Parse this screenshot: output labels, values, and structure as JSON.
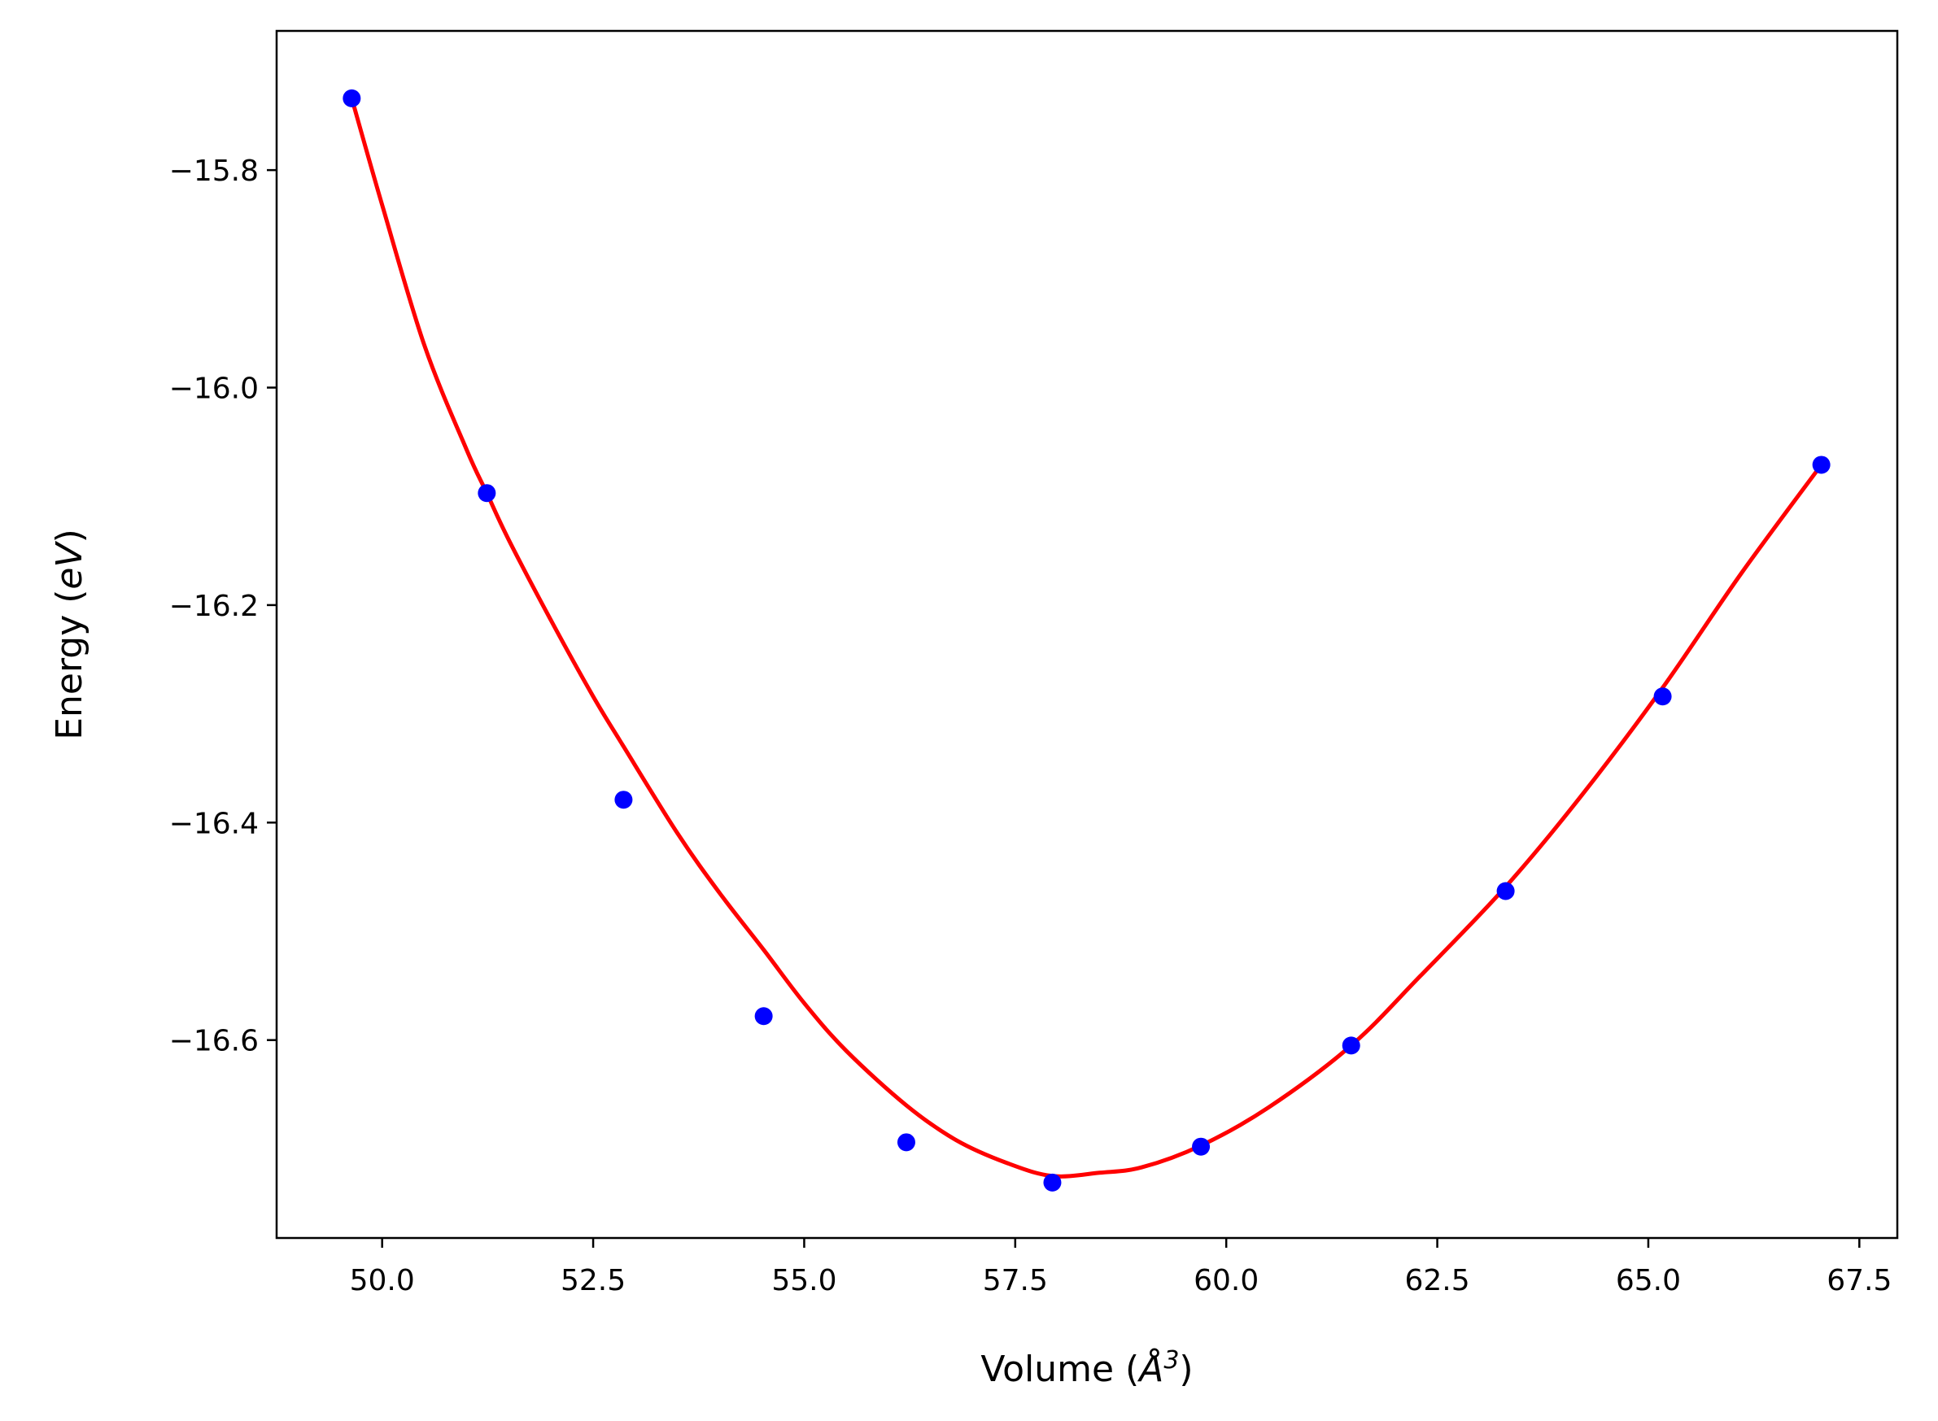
{
  "chart_data": {
    "type": "scatter",
    "title": "",
    "xlabel": {
      "prefix": "Volume (",
      "symbol": "Å",
      "exponent": "3",
      "suffix": ")"
    },
    "ylabel": {
      "prefix": "Energy (",
      "symbol": "eV",
      "suffix": ")"
    },
    "xlim": [
      48.75,
      67.95
    ],
    "ylim": [
      -16.782,
      -15.672
    ],
    "xticks": [
      50.0,
      52.5,
      55.0,
      57.5,
      60.0,
      62.5,
      65.0,
      67.5
    ],
    "xtick_labels": [
      "50.0",
      "52.5",
      "55.0",
      "57.5",
      "60.0",
      "62.5",
      "65.0",
      "67.5"
    ],
    "yticks": [
      -15.8,
      -16.0,
      -16.2,
      -16.4,
      -16.6
    ],
    "ytick_labels": [
      "−15.8",
      "−16.0",
      "−16.2",
      "−16.4",
      "−16.6"
    ],
    "grid": false,
    "series": [
      {
        "kind": "points",
        "color": "#0000ff",
        "x": [
          49.64,
          51.24,
          52.86,
          54.52,
          56.21,
          57.94,
          59.7,
          61.48,
          63.31,
          65.17,
          67.05
        ],
        "y": [
          -15.734,
          -16.097,
          -16.379,
          -16.578,
          -16.694,
          -16.731,
          -16.698,
          -16.605,
          -16.463,
          -16.284,
          -16.071
        ]
      },
      {
        "kind": "fit-curve",
        "color": "#ff0000",
        "x": [
          49.64,
          50.0,
          50.5,
          51.0,
          51.24,
          51.5,
          52.0,
          52.5,
          52.86,
          53.5,
          54.0,
          54.52,
          55.0,
          55.5,
          56.21,
          56.8,
          57.4,
          57.94,
          58.5,
          59.0,
          59.7,
          60.5,
          61.48,
          62.3,
          63.31,
          64.2,
          65.17,
          66.1,
          67.05
        ],
        "y": [
          -15.734,
          -15.832,
          -15.961,
          -16.057,
          -16.097,
          -16.14,
          -16.214,
          -16.284,
          -16.33,
          -16.41,
          -16.465,
          -16.517,
          -16.566,
          -16.61,
          -16.66,
          -16.692,
          -16.713,
          -16.725,
          -16.722,
          -16.717,
          -16.697,
          -16.662,
          -16.605,
          -16.541,
          -16.459,
          -16.376,
          -16.276,
          -16.171,
          -16.071
        ]
      }
    ]
  }
}
